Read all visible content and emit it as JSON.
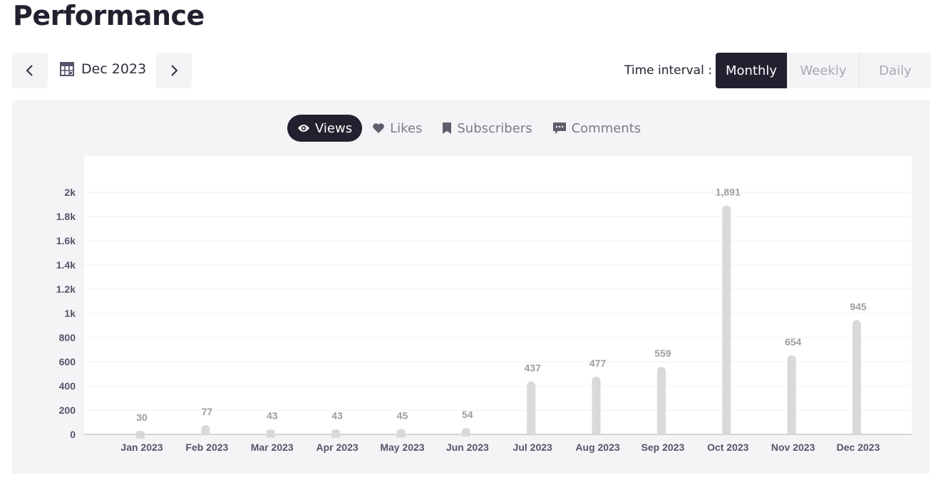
{
  "page_title": "Performance",
  "date_picker": {
    "value": "Dec 2023",
    "prev_icon": "chevron-left-icon",
    "next_icon": "chevron-right-icon",
    "calendar_icon": "calendar-icon"
  },
  "time_interval": {
    "label": "Time interval :",
    "options": [
      "Monthly",
      "Weekly",
      "Daily"
    ],
    "selected": "Monthly"
  },
  "metric_tabs": [
    {
      "label": "Views",
      "icon": "eye-icon",
      "active": true
    },
    {
      "label": "Likes",
      "icon": "heart-icon",
      "active": false
    },
    {
      "label": "Subscribers",
      "icon": "bookmark-icon",
      "active": false
    },
    {
      "label": "Comments",
      "icon": "comment-icon",
      "active": false
    }
  ],
  "colors": {
    "dark": "#22212f",
    "bar": "#d9d9d9",
    "panel": "#f4f4f6",
    "label": "#9e9e9e"
  },
  "chart_data": {
    "type": "bar",
    "categories": [
      "Jan 2023",
      "Feb 2023",
      "Mar 2023",
      "Apr 2023",
      "May 2023",
      "Jun 2023",
      "Jul 2023",
      "Aug 2023",
      "Sep 2023",
      "Oct 2023",
      "Nov 2023",
      "Dec 2023"
    ],
    "values": [
      30,
      77,
      43,
      43,
      45,
      54,
      437,
      477,
      559,
      1891,
      654,
      945
    ],
    "data_labels": [
      "30",
      "77",
      "43",
      "43",
      "45",
      "54",
      "437",
      "477",
      "559",
      "1,891",
      "654",
      "945"
    ],
    "ylim": [
      0,
      2000
    ],
    "yticks": [
      0,
      200,
      400,
      600,
      800,
      1000,
      1200,
      1400,
      1600,
      1800,
      2000
    ],
    "ytick_labels": [
      "0",
      "200",
      "400",
      "600",
      "800",
      "1k",
      "1.2k",
      "1.4k",
      "1.6k",
      "1.8k",
      "2k"
    ],
    "grid": true,
    "xlabel": "",
    "ylabel": "",
    "title": ""
  }
}
